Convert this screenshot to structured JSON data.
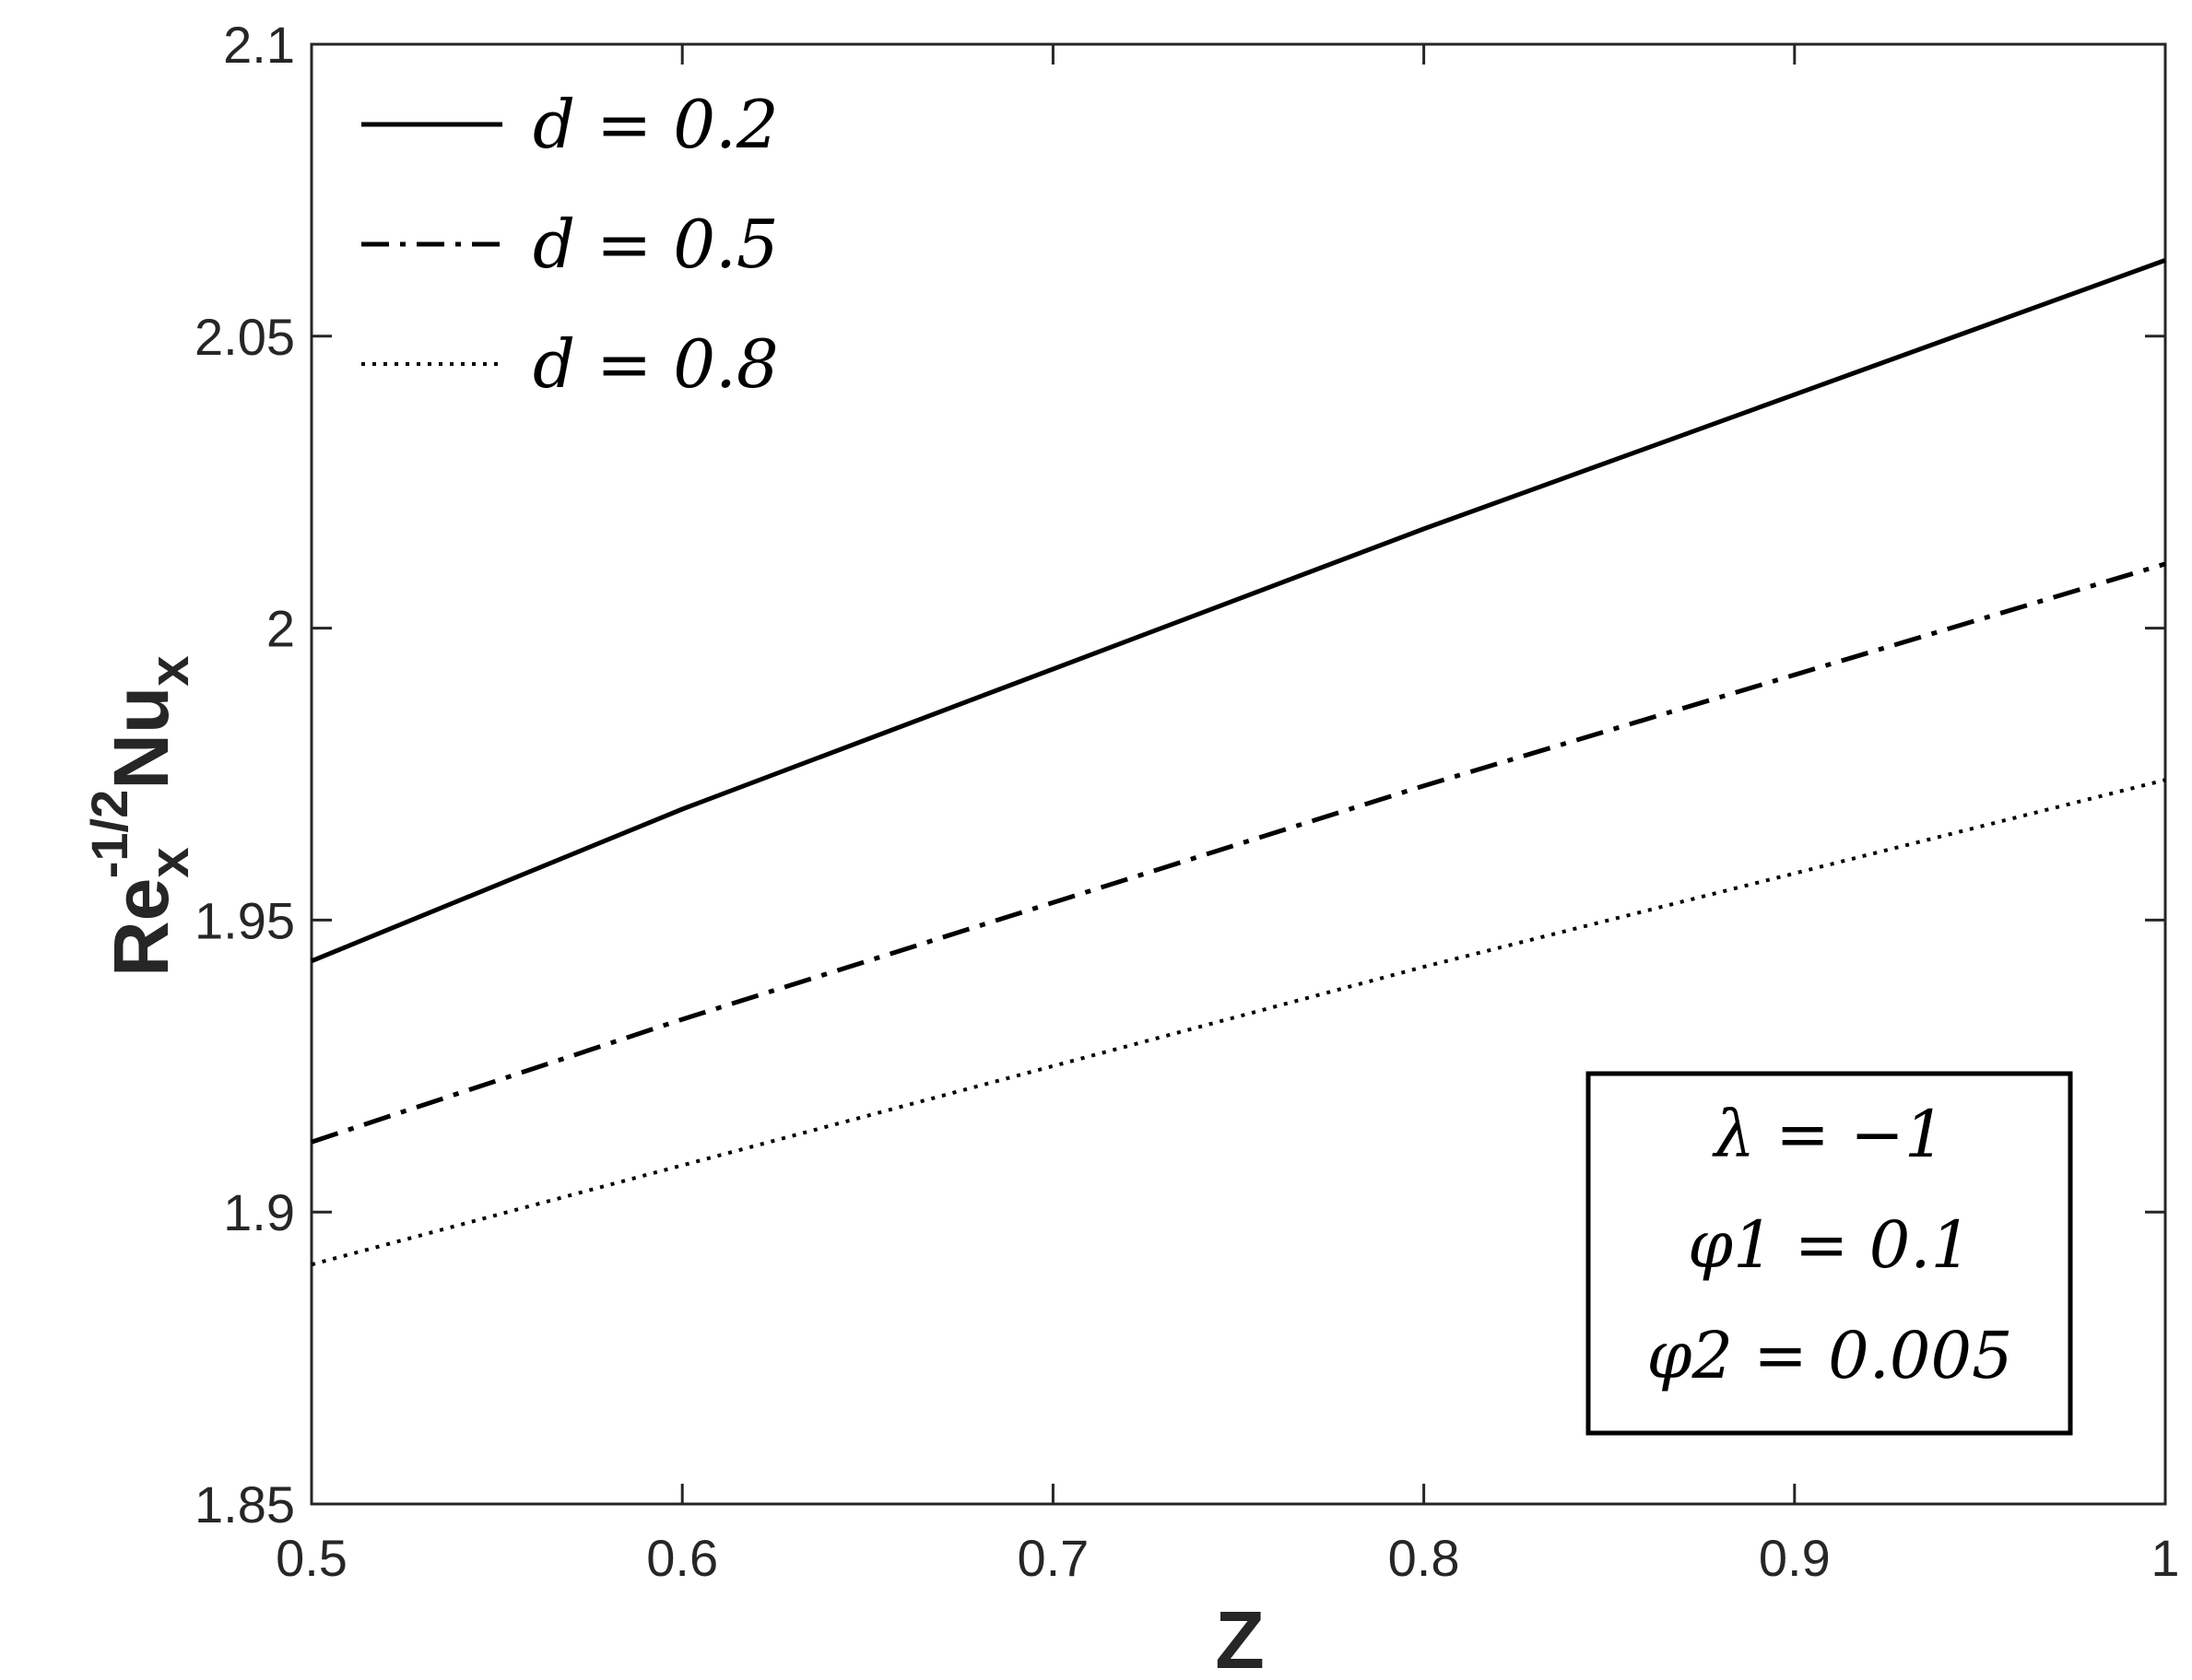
{
  "chart_data": {
    "type": "line",
    "xlabel": "Z",
    "ylabel": {
      "base": "Re",
      "base_sub": "x",
      "base_sup": "-1/2",
      "main": "Nu",
      "main_sub": "x"
    },
    "xlim": [
      0.5,
      1
    ],
    "ylim": [
      1.85,
      2.1
    ],
    "xticks": [
      0.5,
      0.6,
      0.7,
      0.8,
      0.9,
      1
    ],
    "yticks": [
      1.85,
      1.9,
      1.95,
      2,
      2.05,
      2.1
    ],
    "xtick_labels": [
      "0.5",
      "0.6",
      "0.7",
      "0.8",
      "0.9",
      "1"
    ],
    "ytick_labels": [
      "1.85",
      "1.9",
      "1.95",
      "2",
      "2.05",
      "2.1"
    ],
    "grid": false,
    "legend_position": "top-left",
    "series": [
      {
        "name": "d = 0.2",
        "style": "solid",
        "color": "#000000",
        "x": [
          0.5,
          0.6,
          0.7,
          0.8,
          0.9,
          1.0
        ],
        "y": [
          1.943,
          1.969,
          1.993,
          2.017,
          2.04,
          2.063
        ]
      },
      {
        "name": "d = 0.5",
        "style": "dashdot",
        "color": "#000000",
        "x": [
          0.5,
          0.6,
          0.7,
          0.8,
          0.9,
          1.0
        ],
        "y": [
          1.912,
          1.933,
          1.953,
          1.973,
          1.992,
          2.011
        ]
      },
      {
        "name": "d = 0.8",
        "style": "dotted",
        "color": "#000000",
        "x": [
          0.5,
          0.6,
          0.7,
          0.8,
          0.9,
          1.0
        ],
        "y": [
          1.891,
          1.908,
          1.925,
          1.942,
          1.958,
          1.974
        ]
      }
    ],
    "annotation": {
      "position": "bottom-right",
      "lines": [
        "λ = −1",
        "φ1 = 0.1",
        "φ2 = 0.005"
      ]
    }
  }
}
